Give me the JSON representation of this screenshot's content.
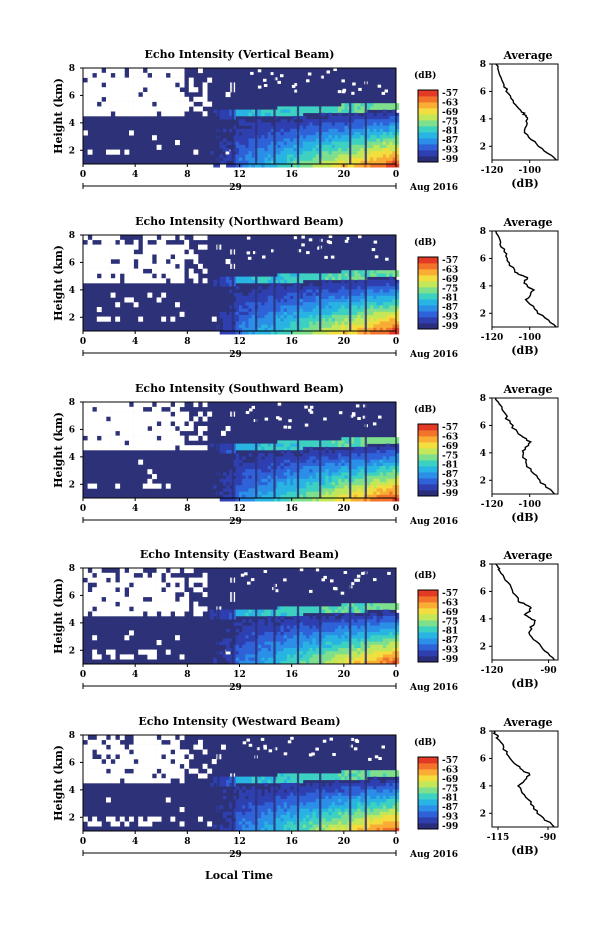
{
  "figure": {
    "xlabel": "Local Time",
    "date_label": "Aug 2016",
    "day_label": "29",
    "y_axis_label": "Height (km)",
    "colorbar_unit": "(dB)",
    "profile_title": "Average",
    "profile_xlabel": "(dB)"
  },
  "chart_data": [
    {
      "type": "heatmap",
      "title": "Echo Intensity (Vertical Beam)",
      "ylabel": "Height (km)",
      "x_ticks": [
        "0",
        "4",
        "8",
        "12",
        "16",
        "20",
        "0"
      ],
      "y_ticks": [
        "8",
        "6",
        "4",
        "2"
      ],
      "ylim": [
        1,
        8
      ],
      "xlim_hours": [
        0,
        24
      ],
      "colorbar_ticks": [
        "-57",
        "-63",
        "-69",
        "-75",
        "-81",
        "-87",
        "-93",
        "-99"
      ],
      "colorbar_range": [
        -99,
        -57
      ],
      "profile": {
        "title": "Average",
        "xlabel": "(dB)",
        "xticks": [
          "-120",
          "-100"
        ],
        "xlim": [
          -120,
          -85
        ],
        "yticks": [
          "8",
          "6",
          "4",
          "2"
        ],
        "points": [
          [
            1,
            -86
          ],
          [
            2,
            -95
          ],
          [
            3,
            -103
          ],
          [
            4,
            -101
          ],
          [
            4.5,
            -104
          ],
          [
            5,
            -108
          ],
          [
            6,
            -112
          ],
          [
            7,
            -115
          ],
          [
            8,
            -118
          ]
        ]
      }
    },
    {
      "type": "heatmap",
      "title": "Echo Intensity (Northward Beam)",
      "ylabel": "Height (km)",
      "x_ticks": [
        "0",
        "4",
        "8",
        "12",
        "16",
        "20",
        "0"
      ],
      "y_ticks": [
        "8",
        "6",
        "4",
        "2"
      ],
      "ylim": [
        1,
        8
      ],
      "xlim_hours": [
        0,
        24
      ],
      "colorbar_ticks": [
        "-57",
        "-63",
        "-69",
        "-75",
        "-81",
        "-87",
        "-93",
        "-99"
      ],
      "colorbar_range": [
        -99,
        -57
      ],
      "profile": {
        "title": "Average",
        "xlabel": "(dB)",
        "xticks": [
          "-120",
          "-100"
        ],
        "xlim": [
          -120,
          -85
        ],
        "yticks": [
          "8",
          "6",
          "4",
          "2"
        ],
        "points": [
          [
            1,
            -86
          ],
          [
            2,
            -95
          ],
          [
            3,
            -102
          ],
          [
            3.7,
            -98
          ],
          [
            4.2,
            -103
          ],
          [
            4.6,
            -101
          ],
          [
            5,
            -108
          ],
          [
            6,
            -112
          ],
          [
            7,
            -115
          ],
          [
            8,
            -118
          ]
        ]
      }
    },
    {
      "type": "heatmap",
      "title": "Echo Intensity (Southward Beam)",
      "ylabel": "Height (km)",
      "x_ticks": [
        "0",
        "4",
        "8",
        "12",
        "16",
        "20",
        "0"
      ],
      "y_ticks": [
        "8",
        "6",
        "4",
        "2"
      ],
      "ylim": [
        1,
        8
      ],
      "xlim_hours": [
        0,
        24
      ],
      "colorbar_ticks": [
        "-57",
        "-63",
        "-69",
        "-75",
        "-81",
        "-87",
        "-93",
        "-99"
      ],
      "colorbar_range": [
        -99,
        -57
      ],
      "profile": {
        "title": "Average",
        "xlabel": "(dB)",
        "xticks": [
          "-120",
          "-100"
        ],
        "xlim": [
          -120,
          -85
        ],
        "yticks": [
          "8",
          "6",
          "4",
          "2"
        ],
        "points": [
          [
            1,
            -87
          ],
          [
            2,
            -95
          ],
          [
            3,
            -101
          ],
          [
            4,
            -104
          ],
          [
            4.8,
            -100
          ],
          [
            5.5,
            -107
          ],
          [
            6.5,
            -112
          ],
          [
            7.5,
            -116
          ],
          [
            8,
            -118
          ]
        ]
      }
    },
    {
      "type": "heatmap",
      "title": "Echo Intensity (Eastward Beam)",
      "ylabel": "Height (km)",
      "x_ticks": [
        "0",
        "4",
        "8",
        "12",
        "16",
        "20",
        "0"
      ],
      "y_ticks": [
        "8",
        "6",
        "4",
        "2"
      ],
      "ylim": [
        1,
        8
      ],
      "xlim_hours": [
        0,
        24
      ],
      "colorbar_ticks": [
        "-57",
        "-63",
        "-69",
        "-75",
        "-81",
        "-87",
        "-93",
        "-99"
      ],
      "colorbar_range": [
        -99,
        -57
      ],
      "profile": {
        "title": "Average",
        "xlabel": "(dB)",
        "xticks": [
          "-120",
          "-90"
        ],
        "xlim": [
          -120,
          -85
        ],
        "yticks": [
          "8",
          "6",
          "4",
          "2"
        ],
        "points": [
          [
            1,
            -87
          ],
          [
            2,
            -94
          ],
          [
            3,
            -101
          ],
          [
            3.8,
            -97
          ],
          [
            4.3,
            -102
          ],
          [
            4.8,
            -99
          ],
          [
            5.3,
            -106
          ],
          [
            6.5,
            -111
          ],
          [
            7.5,
            -116
          ],
          [
            8,
            -118
          ]
        ]
      }
    },
    {
      "type": "heatmap",
      "title": "Echo Intensity (Westward Beam)",
      "ylabel": "Height (km)",
      "x_ticks": [
        "0",
        "4",
        "8",
        "12",
        "16",
        "20",
        "0"
      ],
      "y_ticks": [
        "8",
        "6",
        "4",
        "2"
      ],
      "ylim": [
        1,
        8
      ],
      "xlim_hours": [
        0,
        24
      ],
      "colorbar_ticks": [
        "-57",
        "-63",
        "-69",
        "-75",
        "-81",
        "-87",
        "-93",
        "-99"
      ],
      "colorbar_range": [
        -99,
        -57
      ],
      "profile": {
        "title": "Average",
        "xlabel": "(dB)",
        "xticks": [
          "-115",
          "-90"
        ],
        "xlim": [
          -118,
          -85
        ],
        "yticks": [
          "8",
          "6",
          "4",
          "2"
        ],
        "points": [
          [
            1,
            -87
          ],
          [
            2,
            -95
          ],
          [
            3,
            -100
          ],
          [
            4,
            -105
          ],
          [
            4.8,
            -99
          ],
          [
            5.5,
            -106
          ],
          [
            6.5,
            -111
          ],
          [
            7.5,
            -115
          ],
          [
            8,
            -117
          ]
        ]
      }
    }
  ]
}
